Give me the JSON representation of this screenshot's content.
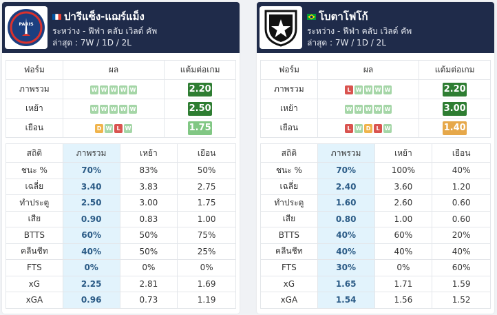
{
  "teams": [
    {
      "name": "ปารีแซ็ง-แฌร์แม็ง",
      "subtitle": "ระหว่าง - ฟีฟ่า คลับ เวิลด์ คัพ",
      "recent": "ล่าสุด : 7W / 1D / 2L",
      "flag_icon": "france-flag-icon",
      "logo_icon": "psg-logo-icon",
      "logo_text": "PARIS",
      "form_headers": [
        "ฟอร์ม",
        "ผล",
        "แต้มต่อเกม"
      ],
      "form_rows": [
        {
          "label": "ภาพรวม",
          "results": [
            "W",
            "W",
            "W",
            "W",
            "W"
          ],
          "ppg": "2.20",
          "ppg_style": "dark"
        },
        {
          "label": "เหย้า",
          "results": [
            "W",
            "W",
            "W",
            "W",
            "W"
          ],
          "ppg": "2.50",
          "ppg_style": "dark"
        },
        {
          "label": "เยือน",
          "results": [
            "D",
            "W",
            "L",
            "W"
          ],
          "ppg": "1.75",
          "ppg_style": "light"
        }
      ],
      "stats_headers": [
        "สถิติ",
        "ภาพรวม",
        "เหย้า",
        "เยือน"
      ],
      "stats_rows": [
        {
          "label": "ชนะ %",
          "overall": "70%",
          "home": "83%",
          "away": "50%"
        },
        {
          "label": "เฉลี่ย",
          "overall": "3.40",
          "home": "3.83",
          "away": "2.75"
        },
        {
          "label": "ทำประตู",
          "overall": "2.50",
          "home": "3.00",
          "away": "1.75"
        },
        {
          "label": "เสีย",
          "overall": "0.90",
          "home": "0.83",
          "away": "1.00"
        },
        {
          "label": "BTTS",
          "overall": "60%",
          "home": "50%",
          "away": "75%"
        },
        {
          "label": "คลีนชีท",
          "overall": "40%",
          "home": "50%",
          "away": "25%"
        },
        {
          "label": "FTS",
          "overall": "0%",
          "home": "0%",
          "away": "0%"
        },
        {
          "label": "xG",
          "overall": "2.25",
          "home": "2.81",
          "away": "1.69"
        },
        {
          "label": "xGA",
          "overall": "0.96",
          "home": "0.73",
          "away": "1.19"
        }
      ]
    },
    {
      "name": "โบตาโฟโก้",
      "subtitle": "ระหว่าง - ฟีฟ่า คลับ เวิลด์ คัพ",
      "recent": "ล่าสุด : 7W / 1D / 2L",
      "flag_icon": "brazil-flag-icon",
      "logo_icon": "botafogo-logo-icon",
      "logo_text": "",
      "form_headers": [
        "ฟอร์ม",
        "ผล",
        "แต้มต่อเกม"
      ],
      "form_rows": [
        {
          "label": "ภาพรวม",
          "results": [
            "L",
            "W",
            "W",
            "W",
            "W"
          ],
          "ppg": "2.20",
          "ppg_style": "dark"
        },
        {
          "label": "เหย้า",
          "results": [
            "W",
            "W",
            "W",
            "W",
            "W"
          ],
          "ppg": "3.00",
          "ppg_style": "dark"
        },
        {
          "label": "เยือน",
          "results": [
            "L",
            "W",
            "D",
            "L",
            "W"
          ],
          "ppg": "1.40",
          "ppg_style": "orange"
        }
      ],
      "stats_headers": [
        "สถิติ",
        "ภาพรวม",
        "เหย้า",
        "เยือน"
      ],
      "stats_rows": [
        {
          "label": "ชนะ %",
          "overall": "70%",
          "home": "100%",
          "away": "40%"
        },
        {
          "label": "เฉลี่ย",
          "overall": "2.40",
          "home": "3.60",
          "away": "1.20"
        },
        {
          "label": "ทำประตู",
          "overall": "1.60",
          "home": "2.60",
          "away": "0.60"
        },
        {
          "label": "เสีย",
          "overall": "0.80",
          "home": "1.00",
          "away": "0.60"
        },
        {
          "label": "BTTS",
          "overall": "40%",
          "home": "60%",
          "away": "20%"
        },
        {
          "label": "คลีนชีท",
          "overall": "40%",
          "home": "40%",
          "away": "40%"
        },
        {
          "label": "FTS",
          "overall": "30%",
          "home": "0%",
          "away": "60%"
        },
        {
          "label": "xG",
          "overall": "1.65",
          "home": "1.71",
          "away": "1.59"
        },
        {
          "label": "xGA",
          "overall": "1.54",
          "home": "1.56",
          "away": "1.52"
        }
      ]
    }
  ],
  "colors": {
    "header_bg": "#1f2b4a",
    "win": "#a5d6a7",
    "draw": "#f0b44c",
    "loss": "#d9534f",
    "ppg_dark": "#2e7d32",
    "ppg_light": "#81c784",
    "ppg_orange": "#e6a84a",
    "highlight_col": "#e2f3fc"
  }
}
